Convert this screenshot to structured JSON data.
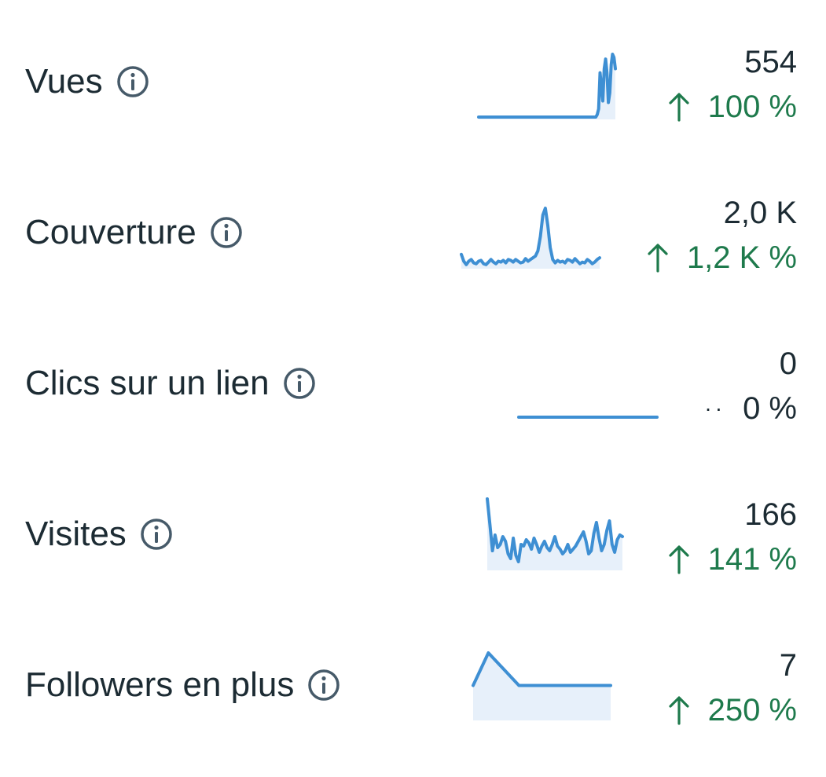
{
  "colors": {
    "text": "#1c2b33",
    "icon": "#465a69",
    "positive": "#1e7a4c",
    "neutral": "#1c2b33",
    "sparkline_line": "#3e8fd3",
    "sparkline_fill": "#e7f0fa"
  },
  "metrics": [
    {
      "label": "Vues",
      "info_icon": "info-circle-icon",
      "value": "554",
      "change": "100 %",
      "trend": "up",
      "trend_icon": "arrow-up-icon",
      "sparkline": [
        0,
        0,
        0,
        0,
        0,
        0,
        0,
        0,
        0,
        0,
        0,
        0,
        0,
        0,
        0,
        0,
        0,
        0,
        0,
        0,
        0,
        0,
        0,
        0,
        0,
        0,
        0,
        0,
        0,
        0,
        0,
        0,
        0,
        0,
        0,
        0,
        0,
        0,
        0,
        0,
        0,
        0,
        0,
        0,
        0,
        0,
        0,
        0,
        0,
        0,
        0,
        0,
        0,
        0,
        0,
        0,
        0,
        0,
        0,
        0,
        0,
        0,
        0,
        0,
        0,
        0,
        0,
        0,
        0,
        0,
        0,
        0,
        0,
        0,
        0,
        0,
        0,
        0,
        0,
        0,
        0,
        0,
        0,
        0,
        0,
        3,
        10,
        55,
        38,
        20,
        60,
        72,
        55,
        18,
        30,
        65,
        78,
        74,
        60
      ]
    },
    {
      "label": "Couverture",
      "info_icon": "info-circle-icon",
      "value": "2,0 K",
      "change": "1,2 K %",
      "trend": "up",
      "trend_icon": "arrow-up-icon",
      "sparkline": [
        14,
        6,
        2,
        6,
        8,
        4,
        3,
        6,
        7,
        3,
        2,
        5,
        8,
        5,
        3,
        6,
        5,
        7,
        4,
        8,
        7,
        5,
        8,
        6,
        4,
        5,
        9,
        6,
        8,
        10,
        12,
        18,
        35,
        60,
        68,
        48,
        22,
        8,
        4,
        7,
        5,
        6,
        4,
        8,
        7,
        5,
        9,
        6,
        3,
        5,
        4,
        8,
        6,
        3,
        5,
        8,
        10
      ]
    },
    {
      "label": "Clics sur un lien",
      "info_icon": "info-circle-icon",
      "value": "0",
      "change": "0 %",
      "trend": "neutral",
      "trend_icon": "dots-neutral-icon",
      "sparkline": [
        0,
        0,
        0,
        0,
        0,
        0,
        0,
        0,
        0,
        0,
        0,
        0,
        0,
        0,
        0,
        0,
        0,
        0,
        0,
        0
      ]
    },
    {
      "label": "Visites",
      "info_icon": "info-circle-icon",
      "value": "166",
      "change": "141 %",
      "trend": "up",
      "trend_icon": "arrow-up-icon",
      "sparkline": [
        88,
        56,
        22,
        42,
        26,
        30,
        40,
        34,
        18,
        12,
        38,
        16,
        8,
        30,
        28,
        36,
        32,
        24,
        38,
        30,
        20,
        28,
        34,
        26,
        22,
        30,
        40,
        28,
        24,
        18,
        22,
        30,
        20,
        24,
        28,
        34,
        40,
        46,
        34,
        18,
        22,
        44,
        58,
        38,
        22,
        30,
        48,
        60,
        30,
        20,
        36,
        42,
        40
      ]
    },
    {
      "label": "Followers en plus",
      "info_icon": "info-circle-icon",
      "value": "7",
      "change": "250 %",
      "trend": "up",
      "trend_icon": "arrow-up-icon",
      "sparkline": [
        1,
        2,
        1.5,
        1,
        1,
        1,
        1,
        1,
        1,
        1
      ]
    }
  ]
}
